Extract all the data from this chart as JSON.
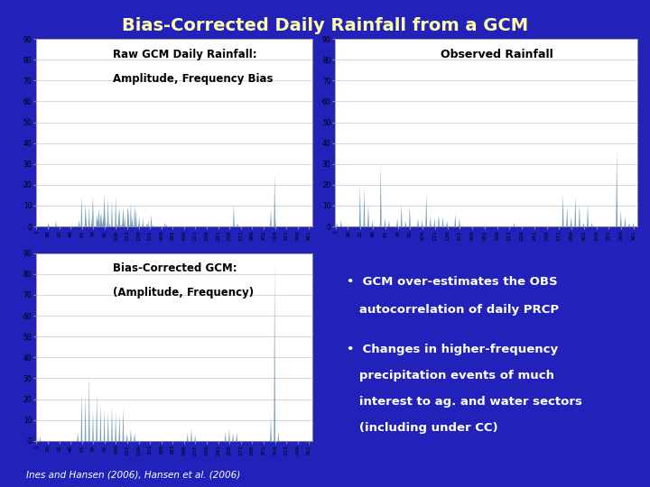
{
  "title": "Bias-Corrected Daily Rainfall from a GCM",
  "title_color": "#FFFFAA",
  "background_color": "#2222BB",
  "panel_bg": "#FFFFFF",
  "chart_line_color": "#5588AA",
  "grid_color": "#BBBBBB",
  "panel1_label_line1": "Raw GCM Daily Rainfall:",
  "panel1_label_line2": "Amplitude, Frequency Bias",
  "panel2_label": "Observed Rainfall",
  "panel3_label_line1": "Bias-Corrected GCM:",
  "panel3_label_line2": "(Amplitude, Frequency)",
  "bullet1_line1": "•  GCM over-estimates the OBS",
  "bullet1_line2": "   autocorrelation of daily PRCP",
  "bullet2_line1": "•  Changes in higher-frequency",
  "bullet2_line2": "   precipitation events of much",
  "bullet2_line3": "   interest to ag. and water sectors",
  "bullet2_line4": "   (including under CC)",
  "citation": "Ines and Hansen (2006), Hansen et al. (2006)",
  "panel1_yticks": [
    0,
    10,
    20,
    30,
    40,
    50,
    60,
    70,
    80,
    90
  ],
  "panel2_yticks": [
    0,
    10,
    20,
    30,
    40,
    50,
    60,
    70,
    80,
    90
  ],
  "panel3_yticks": [
    0,
    10,
    20,
    30,
    40,
    50,
    60,
    70,
    80,
    90
  ],
  "n_days": 365,
  "xtick_positions": [
    1,
    16,
    31,
    46,
    61,
    76,
    91,
    106,
    121,
    136,
    151,
    166,
    181,
    196,
    211,
    226,
    241,
    256,
    271,
    286,
    301,
    316,
    331,
    346,
    361
  ]
}
